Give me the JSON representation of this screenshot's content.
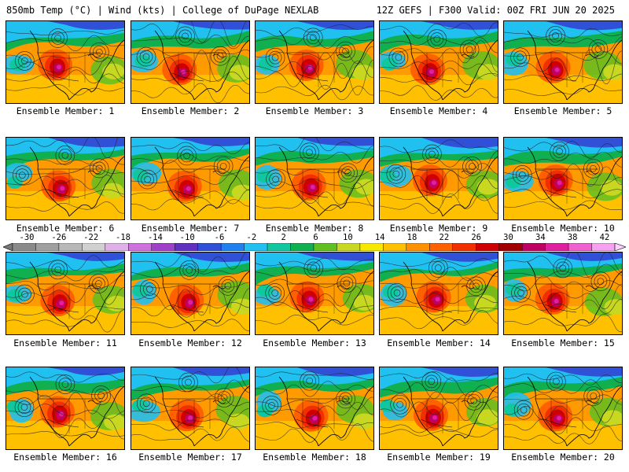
{
  "header": {
    "left": "850mb Temp (°C) | Wind (kts) | College of DuPage NEXLAB",
    "right": "12Z GEFS | F300 Valid: 00Z FRI JUN 20 2025"
  },
  "panels": [
    {
      "label": "Ensemble Member: 1"
    },
    {
      "label": "Ensemble Member: 2"
    },
    {
      "label": "Ensemble Member: 3"
    },
    {
      "label": "Ensemble Member: 4"
    },
    {
      "label": "Ensemble Member: 5"
    },
    {
      "label": "Ensemble Member: 6"
    },
    {
      "label": "Ensemble Member: 7"
    },
    {
      "label": "Ensemble Member: 8"
    },
    {
      "label": "Ensemble Member: 9"
    },
    {
      "label": "Ensemble Member: 10"
    },
    {
      "label": "Ensemble Member: 11"
    },
    {
      "label": "Ensemble Member: 12"
    },
    {
      "label": "Ensemble Member: 13"
    },
    {
      "label": "Ensemble Member: 14"
    },
    {
      "label": "Ensemble Member: 15"
    },
    {
      "label": "Ensemble Member: 16"
    },
    {
      "label": "Ensemble Member: 17"
    },
    {
      "label": "Ensemble Member: 18"
    },
    {
      "label": "Ensemble Member: 19"
    },
    {
      "label": "Ensemble Member: 20"
    }
  ],
  "colorbar": {
    "tick_labels": [
      "-30",
      "-26",
      "-22",
      "-18",
      "-14",
      "-10",
      "-6",
      "-2",
      "2",
      "6",
      "10",
      "14",
      "18",
      "22",
      "26",
      "30",
      "34",
      "38",
      "42"
    ],
    "colors": [
      "#8a8a8a",
      "#a0a0a0",
      "#b8b8b8",
      "#d0d0d0",
      "#e0b0e8",
      "#d070e0",
      "#a040c8",
      "#6030c0",
      "#3050d8",
      "#2080f0",
      "#20c0f0",
      "#10c8a0",
      "#10b050",
      "#60c020",
      "#c8d820",
      "#f8e800",
      "#ffc000",
      "#ff9000",
      "#ff6000",
      "#f03000",
      "#d00000",
      "#a00000",
      "#c00060",
      "#e020a0",
      "#f060d0",
      "#f8a0f0"
    ]
  }
}
